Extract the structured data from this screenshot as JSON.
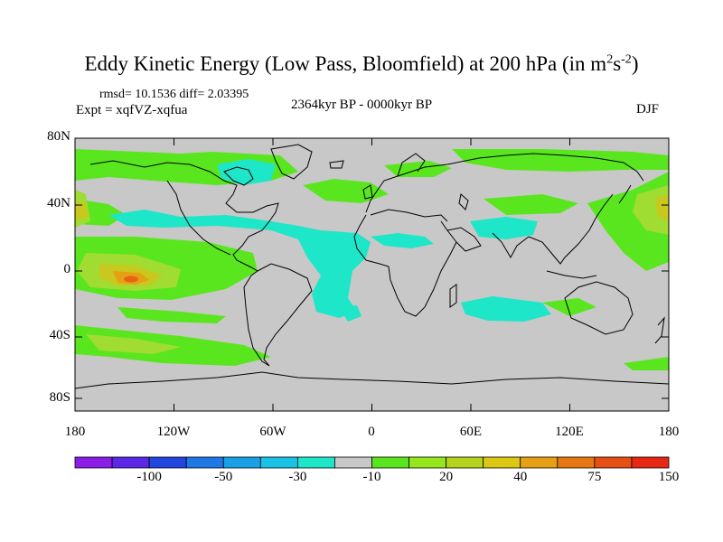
{
  "title": "Eddy Kinetic Energy (Low Pass, Bloomfield) at 200 hPa (in m",
  "title_sup1": "2",
  "title_mid": "s",
  "title_sup2": "-2",
  "title_end": ")",
  "stats": "rmsd= 10.1536 diff= 2.03395",
  "experiment": "Expt = xqfVZ-xqfua",
  "period": "2364kyr BP - 0000kyr BP",
  "season": "DJF",
  "lat_ticks": [
    "80N",
    "40N",
    "0",
    "40S",
    "80S"
  ],
  "lon_ticks": [
    "180",
    "120W",
    "60W",
    "0",
    "60E",
    "120E",
    "180"
  ],
  "colorbar": {
    "labels": [
      "-100",
      "-50",
      "-30",
      "-10",
      "20",
      "40",
      "75",
      "150"
    ],
    "colors": [
      "#8a1ee6",
      "#5a28e6",
      "#2346e0",
      "#1e78e6",
      "#19a0e6",
      "#19c3e6",
      "#1ee6c8",
      "#c8c8c8",
      "#5ae61e",
      "#96e61e",
      "#b4d21e",
      "#dcc814",
      "#e6a014",
      "#e67814",
      "#e65014",
      "#e62814"
    ]
  },
  "map_colors": {
    "neutral": "#c8c8c8",
    "coast": "#000000",
    "light_green": "#5ae61e",
    "yellow_green": "#a0dc32",
    "olive": "#c8c81e",
    "orange": "#e6a014",
    "red_orange": "#e66414",
    "cyan": "#1ee6c8"
  }
}
